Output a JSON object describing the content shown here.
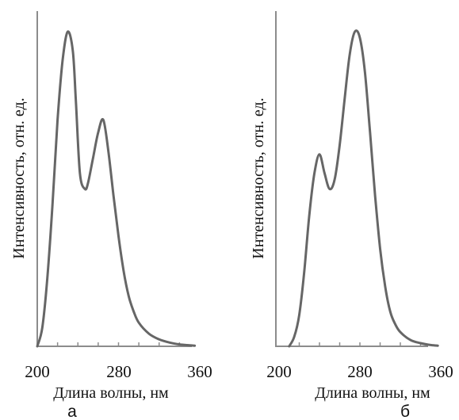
{
  "chart_data": [
    {
      "type": "line",
      "panel_label": "а",
      "xlabel": "Длина волны, нм",
      "ylabel": "Интенсивность, отн. ед.",
      "x_ticks": [
        "200",
        "280",
        "360"
      ],
      "xlim": [
        200,
        360
      ],
      "ylim": [
        0,
        1
      ],
      "grid": false,
      "series": [
        {
          "color": "#666666",
          "x": [
            200,
            205,
            210,
            215,
            220,
            225,
            230,
            235,
            238,
            242,
            247,
            250,
            255,
            260,
            265,
            270,
            275,
            280,
            285,
            290,
            295,
            300,
            310,
            320,
            330,
            340,
            350,
            355
          ],
          "y": [
            0.0,
            0.06,
            0.22,
            0.45,
            0.72,
            0.91,
            1.0,
            0.94,
            0.78,
            0.55,
            0.5,
            0.52,
            0.6,
            0.68,
            0.72,
            0.62,
            0.48,
            0.35,
            0.24,
            0.16,
            0.11,
            0.075,
            0.04,
            0.022,
            0.012,
            0.006,
            0.003,
            0.002
          ]
        }
      ]
    },
    {
      "type": "line",
      "panel_label": "б",
      "xlabel": "Длина волны, нм",
      "ylabel": "Интенсивность, отн. ед.",
      "x_ticks": [
        "200",
        "280",
        "360"
      ],
      "xlim": [
        200,
        360
      ],
      "ylim": [
        0,
        1
      ],
      "grid": false,
      "series": [
        {
          "color": "#666666",
          "x": [
            210,
            215,
            220,
            225,
            230,
            235,
            240,
            245,
            250,
            255,
            260,
            265,
            270,
            275,
            280,
            285,
            290,
            295,
            300,
            305,
            310,
            315,
            320,
            330,
            340,
            350,
            357
          ],
          "y": [
            0.0,
            0.03,
            0.1,
            0.24,
            0.42,
            0.55,
            0.61,
            0.55,
            0.5,
            0.53,
            0.64,
            0.79,
            0.93,
            1.0,
            0.98,
            0.87,
            0.68,
            0.48,
            0.31,
            0.19,
            0.11,
            0.07,
            0.045,
            0.02,
            0.01,
            0.004,
            0.002
          ]
        }
      ]
    }
  ]
}
